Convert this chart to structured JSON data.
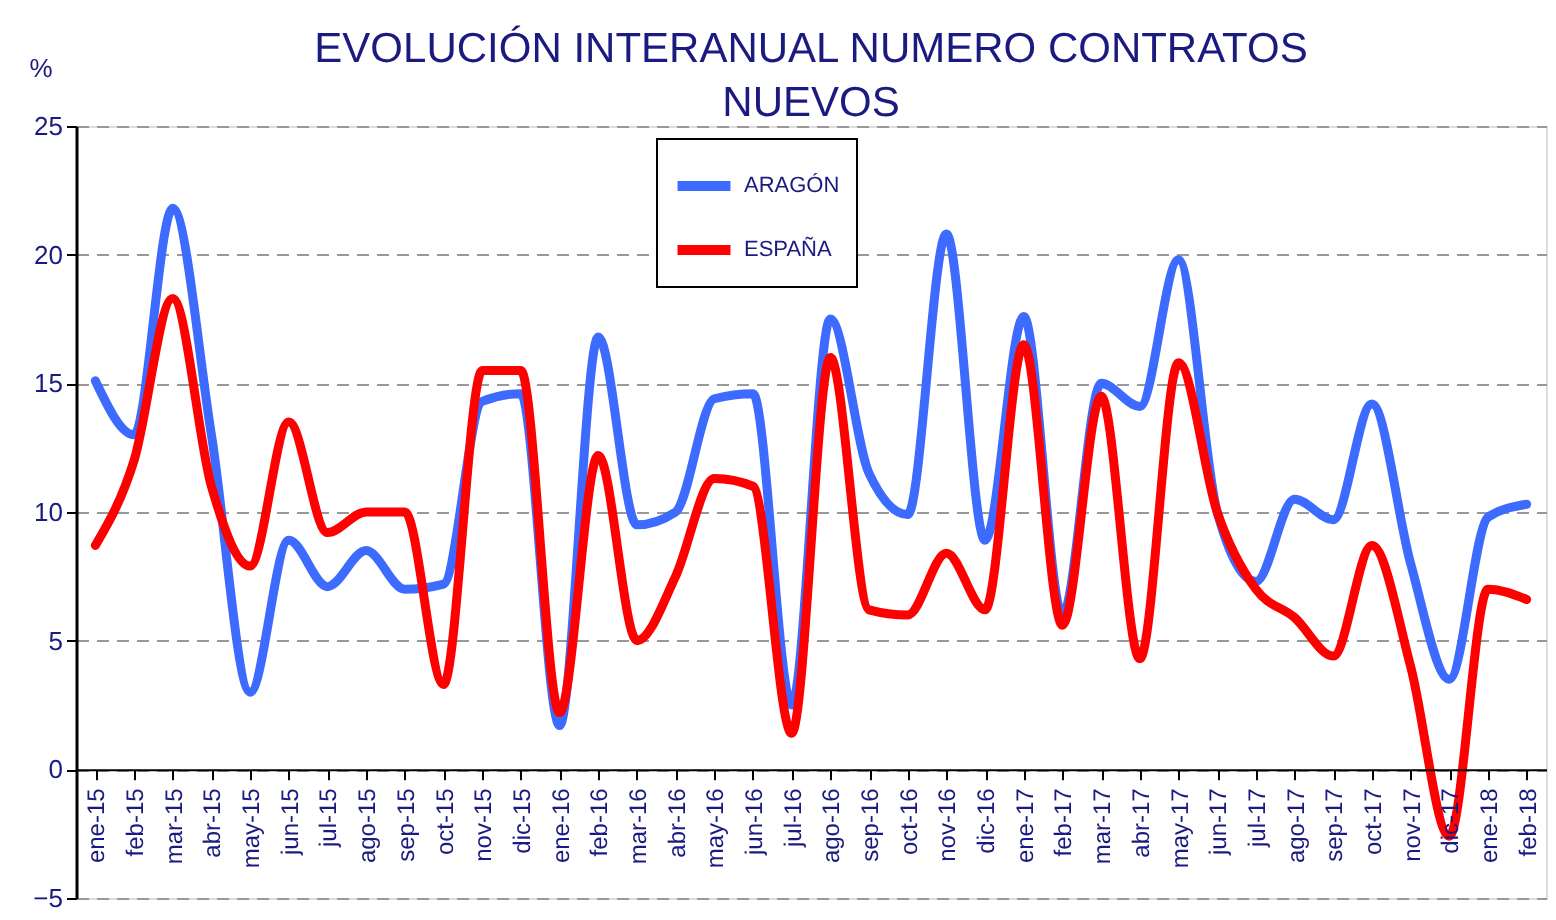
{
  "chart_data": {
    "type": "line",
    "title": "EVOLUCIÓN INTERANUAL NUMERO CONTRATOS NUEVOS",
    "ylabel": "%",
    "categories": [
      "ene-15",
      "feb-15",
      "mar-15",
      "abr-15",
      "may-15",
      "jun-15",
      "jul-15",
      "ago-15",
      "sep-15",
      "oct-15",
      "nov-15",
      "dic-15",
      "ene-16",
      "feb-16",
      "mar-16",
      "abr-16",
      "may-16",
      "jun-16",
      "jul-16",
      "ago-16",
      "sep-16",
      "oct-16",
      "nov-16",
      "dic-16",
      "ene-17",
      "feb-17",
      "mar-17",
      "abr-17",
      "may-17",
      "jun-17",
      "jul-17",
      "ago-17",
      "sep-17",
      "oct-17",
      "nov-17",
      "dic-17",
      "ene-18",
      "feb-18"
    ],
    "ylim": [
      -5,
      25
    ],
    "yticks": [
      -5,
      0,
      5,
      10,
      15,
      20,
      25
    ],
    "grid": "y",
    "legend": "top",
    "line_style": "solid",
    "marker": "none",
    "series": [
      {
        "name": "ARAGÓN",
        "color": "#3d6bff",
        "values": [
          15.1,
          13,
          21.8,
          13,
          3,
          8.9,
          7.1,
          8.5,
          7,
          7.2,
          14.3,
          14.6,
          1.7,
          16.8,
          9.5,
          10,
          14.4,
          14.6,
          2.5,
          17.5,
          11.5,
          9.9,
          20.8,
          8.9,
          17.6,
          6,
          15,
          14.1,
          19.8,
          10,
          7.3,
          10.5,
          9.7,
          14.2,
          8,
          3.5,
          9.8,
          10.3
        ]
      },
      {
        "name": "ESPAÑA",
        "color": "#ff0000",
        "values": [
          8.7,
          12,
          18.3,
          11,
          7.9,
          13.5,
          9.2,
          10,
          10,
          3.3,
          15.5,
          15.5,
          2.2,
          12.2,
          5,
          7.5,
          11.3,
          11,
          1.4,
          16,
          6.2,
          6,
          8.4,
          6.2,
          16.5,
          5.6,
          14.5,
          4.3,
          15.8,
          10,
          7,
          5.9,
          4.4,
          8.7,
          4,
          -2.6,
          7,
          6.6
        ]
      }
    ]
  }
}
